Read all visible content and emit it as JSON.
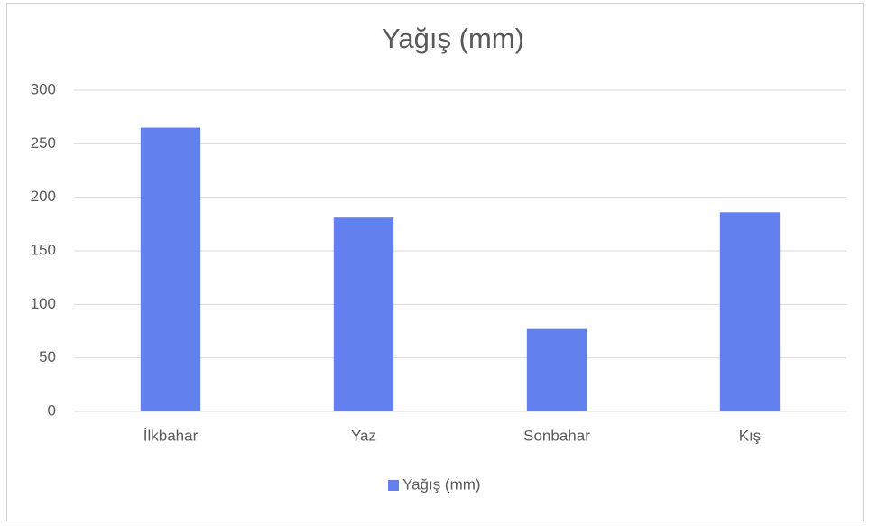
{
  "chart_data": {
    "type": "bar",
    "title": "Yağış (mm)",
    "categories": [
      "İlkbahar",
      "Yaz",
      "Sonbahar",
      "Kış"
    ],
    "series": [
      {
        "name": "Yağış (mm)",
        "color": "#6380ef",
        "values": [
          265,
          181,
          77,
          186
        ]
      }
    ],
    "ylim": [
      0,
      300
    ],
    "yticks": [
      0,
      50,
      100,
      150,
      200,
      250,
      300
    ],
    "grid": true,
    "legend": "bottom"
  }
}
